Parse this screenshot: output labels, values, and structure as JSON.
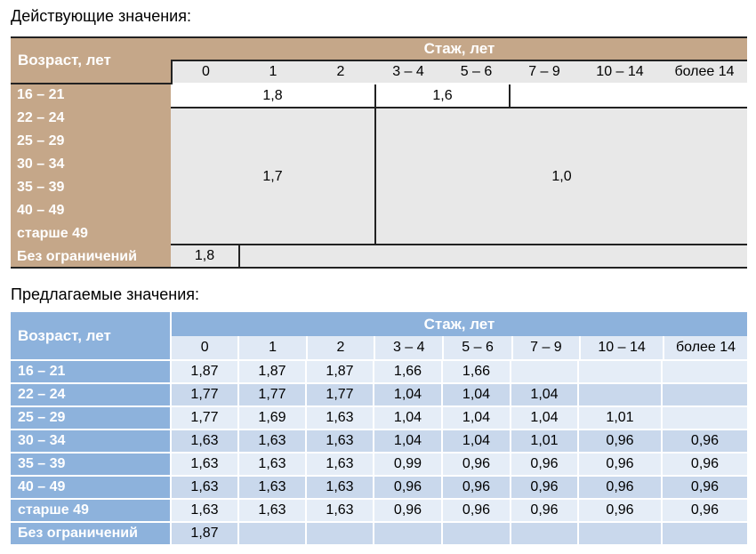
{
  "current": {
    "heading": "Действующие значения:",
    "corner": "Возраст, лет",
    "header": "Стаж, лет",
    "years": [
      "0",
      "1",
      "2",
      "3 – 4",
      "5 – 6",
      "7 – 9",
      "10 – 14",
      "более 14"
    ],
    "rows": [
      "16 – 21",
      "22 – 24",
      "25 – 29",
      "30 – 34",
      "35 – 39",
      "40 – 49",
      "старше 49",
      "Без ограничений"
    ],
    "values": {
      "young_low_exp": "1,8",
      "young_mid_exp": "1,6",
      "older_low_exp": "1,7",
      "older_high_exp": "1,0",
      "unlimited": "1,8"
    }
  },
  "proposed": {
    "heading": "Предлагаемые значения:",
    "corner": "Возраст, лет",
    "header": "Стаж, лет",
    "years": [
      "0",
      "1",
      "2",
      "3 – 4",
      "5 – 6",
      "7 – 9",
      "10 – 14",
      "более 14"
    ],
    "rows": [
      {
        "label": "16 – 21",
        "values": [
          "1,87",
          "1,87",
          "1,87",
          "1,66",
          "1,66",
          "",
          "",
          ""
        ]
      },
      {
        "label": "22 – 24",
        "values": [
          "1,77",
          "1,77",
          "1,77",
          "1,04",
          "1,04",
          "1,04",
          "",
          ""
        ]
      },
      {
        "label": "25 – 29",
        "values": [
          "1,77",
          "1,69",
          "1,63",
          "1,04",
          "1,04",
          "1,04",
          "1,01",
          ""
        ]
      },
      {
        "label": "30 – 34",
        "values": [
          "1,63",
          "1,63",
          "1,63",
          "1,04",
          "1,04",
          "1,01",
          "0,96",
          "0,96"
        ]
      },
      {
        "label": "35 – 39",
        "values": [
          "1,63",
          "1,63",
          "1,63",
          "0,99",
          "0,96",
          "0,96",
          "0,96",
          "0,96"
        ]
      },
      {
        "label": "40 – 49",
        "values": [
          "1,63",
          "1,63",
          "1,63",
          "0,96",
          "0,96",
          "0,96",
          "0,96",
          "0,96"
        ]
      },
      {
        "label": "старше 49",
        "values": [
          "1,63",
          "1,63",
          "1,63",
          "0,96",
          "0,96",
          "0,96",
          "0,96",
          "0,96"
        ]
      },
      {
        "label": "Без ограничений",
        "values": [
          "1,87",
          "",
          "",
          "",
          "",
          "",
          "",
          ""
        ]
      }
    ]
  }
}
